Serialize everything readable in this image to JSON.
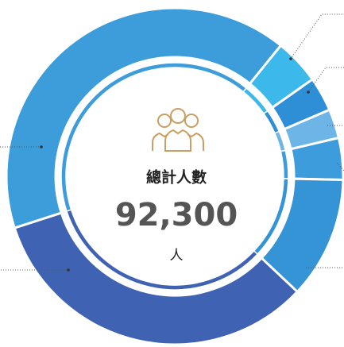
{
  "chart_data": {
    "type": "pie",
    "values": [
      4.4,
      3.3,
      2.8,
      4,
      11.7,
      33,
      40.8
    ],
    "colors": [
      "#3cb9ea",
      "#2f8fd6",
      "#6cb5e6",
      "#3d9cdc",
      "#3594d6",
      "#3f62b3",
      "#3d9ddb"
    ],
    "center_title": "總計人數",
    "total": {
      "value": 92300,
      "label": "92,300"
    },
    "unit": "人"
  }
}
